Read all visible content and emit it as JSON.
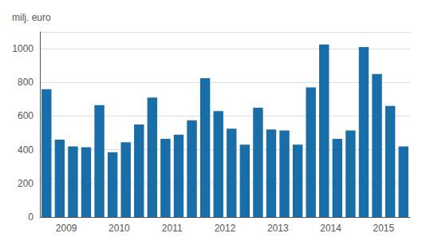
{
  "chart_data": {
    "type": "bar",
    "ylabel": "milj. euro",
    "categories": [
      null,
      "2009",
      null,
      null,
      null,
      "2010",
      null,
      null,
      null,
      "2011",
      null,
      null,
      null,
      "2012",
      null,
      null,
      null,
      "2013",
      null,
      null,
      null,
      "2014",
      null,
      null,
      null,
      "2015",
      null,
      null
    ],
    "values": [
      760,
      460,
      420,
      415,
      665,
      385,
      445,
      550,
      710,
      465,
      490,
      575,
      825,
      630,
      525,
      430,
      650,
      520,
      515,
      430,
      770,
      1025,
      465,
      515,
      1010,
      850,
      660,
      420
    ],
    "color": "#1a6ea8",
    "ylim": [
      0,
      1100
    ],
    "yticks": [
      0,
      200,
      400,
      600,
      800,
      1000
    ],
    "grid": true
  }
}
